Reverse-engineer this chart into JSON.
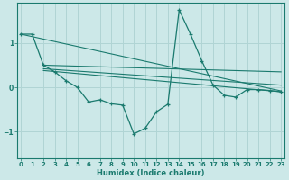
{
  "xlabel": "Humidex (Indice chaleur)",
  "bg_color": "#cce8e8",
  "line_color": "#1a7a6e",
  "grid_color": "#b0d4d4",
  "series": [
    {
      "x": [
        0,
        1,
        2,
        3,
        4,
        5,
        6,
        7,
        8,
        9,
        10,
        11,
        12,
        13,
        14,
        15,
        16,
        17,
        18,
        19,
        20,
        21,
        22,
        23
      ],
      "y": [
        1.2,
        1.2,
        0.5,
        0.35,
        0.15,
        0.0,
        -0.33,
        -0.28,
        -0.37,
        -0.4,
        -1.05,
        -0.92,
        -0.55,
        -0.38,
        1.75,
        1.2,
        0.6,
        0.05,
        -0.18,
        -0.22,
        -0.05,
        -0.05,
        -0.07,
        -0.1
      ],
      "marker": true
    },
    {
      "x": [
        0,
        23
      ],
      "y": [
        1.2,
        -0.08
      ],
      "marker": false
    },
    {
      "x": [
        2,
        23
      ],
      "y": [
        0.5,
        0.35
      ],
      "marker": false
    },
    {
      "x": [
        2,
        23
      ],
      "y": [
        0.42,
        0.05
      ],
      "marker": false
    },
    {
      "x": [
        2,
        23
      ],
      "y": [
        0.38,
        -0.1
      ],
      "marker": false
    }
  ],
  "xlim": [
    -0.3,
    23.3
  ],
  "ylim": [
    -1.6,
    1.9
  ],
  "yticks": [
    -1,
    0,
    1
  ],
  "xticks": [
    0,
    1,
    2,
    3,
    4,
    5,
    6,
    7,
    8,
    9,
    10,
    11,
    12,
    13,
    14,
    15,
    16,
    17,
    18,
    19,
    20,
    21,
    22,
    23
  ],
  "tick_labelsize": 5.0,
  "xlabel_fontsize": 6.0
}
